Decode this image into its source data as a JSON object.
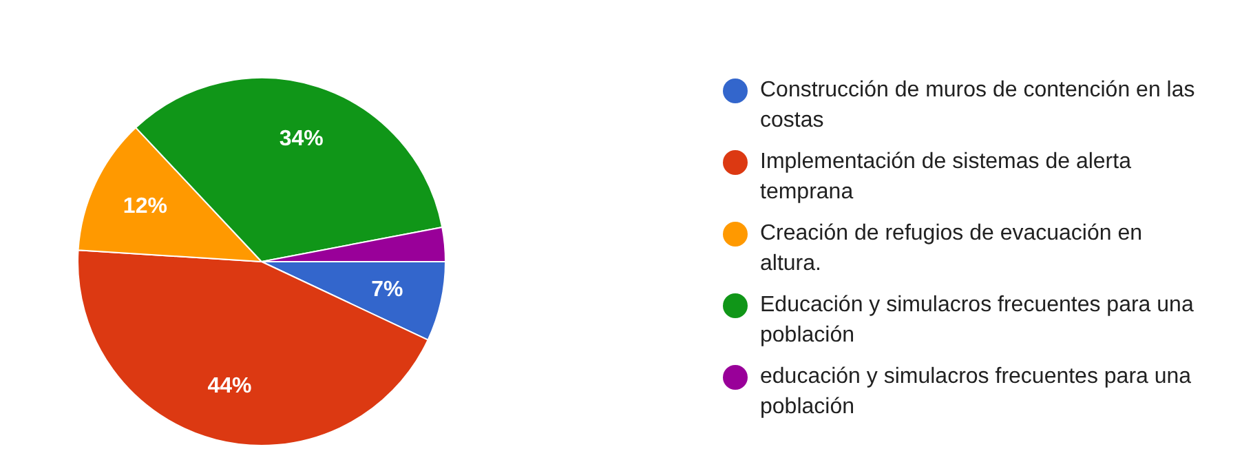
{
  "chart_data": {
    "type": "pie",
    "categories": [
      "Construcción de muros de contención en las costas",
      "Implementación de sistemas de alerta temprana",
      "Creación de refugios de evacuación en altura.",
      "Educación y simulacros frecuentes para una población",
      "educación y simulacros frecuentes para una población"
    ],
    "values": [
      7,
      44,
      12,
      34,
      3
    ],
    "colors": [
      "#3366cc",
      "#dc3912",
      "#ff9900",
      "#109618",
      "#990099"
    ],
    "value_labels": [
      "7%",
      "44%",
      "12%",
      "34%",
      null
    ],
    "legend": "right"
  }
}
